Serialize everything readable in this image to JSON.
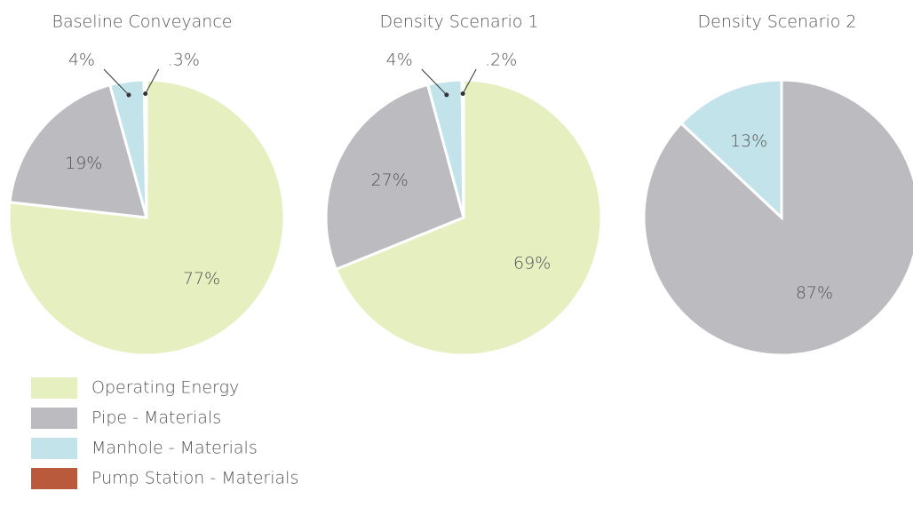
{
  "legend": [
    {
      "name": "Operating Energy",
      "color": "#e5efc0"
    },
    {
      "name": "Pipe - Materials",
      "color": "#bcbcc0"
    },
    {
      "name": "Manhole - Materials",
      "color": "#c2e3ea"
    },
    {
      "name": "Pump Station - Materials",
      "color": "#b95a3c"
    }
  ],
  "chart_data": [
    {
      "type": "pie",
      "title": "Baseline Conveyance",
      "values": [
        77,
        19,
        4,
        0.3
      ],
      "value_labels": [
        "77%",
        "19%",
        "4%",
        ".3%"
      ]
    },
    {
      "type": "pie",
      "title": "Density Scenario 1",
      "values": [
        69,
        27,
        4,
        0.2
      ],
      "value_labels": [
        "69%",
        "27%",
        "4%",
        ".2%"
      ]
    },
    {
      "type": "pie",
      "title": "Density Scenario 2",
      "values": [
        null,
        87,
        13,
        null
      ],
      "value_labels": [
        null,
        "87%",
        "13%",
        null
      ]
    }
  ]
}
